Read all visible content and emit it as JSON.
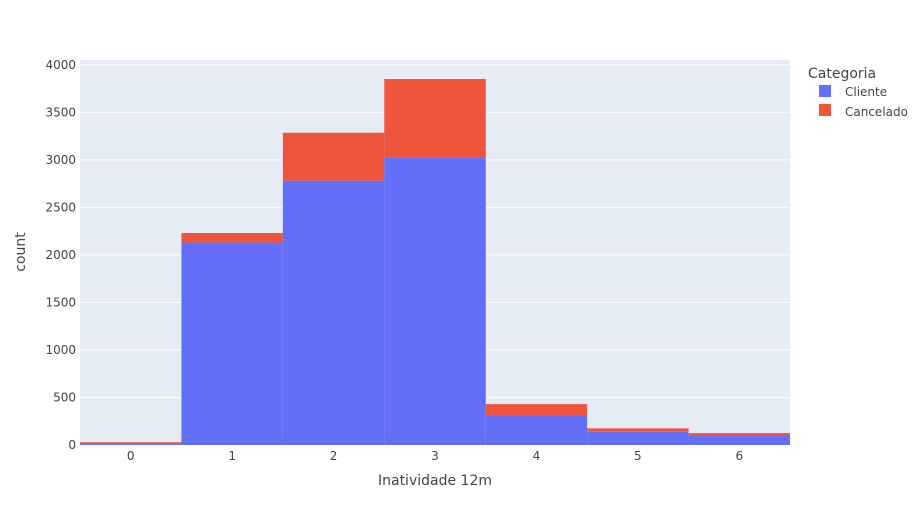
{
  "chart_data": {
    "type": "bar",
    "barmode": "stack",
    "categories": [
      "0",
      "1",
      "2",
      "3",
      "4",
      "5",
      "6"
    ],
    "series": [
      {
        "name": "Cliente",
        "values": [
          15,
          2130,
          2780,
          3020,
          305,
          145,
          100
        ]
      },
      {
        "name": "Cancelado",
        "values": [
          15,
          100,
          505,
          830,
          125,
          30,
          25
        ]
      }
    ],
    "xlabel": "Inatividade 12m",
    "ylabel": "count",
    "ylim": [
      0,
      4050
    ],
    "yticks": [
      "0",
      "500",
      "1000",
      "1500",
      "2000",
      "2500",
      "3000",
      "3500",
      "4000"
    ],
    "grid": true,
    "legend": {
      "title": "Categoria",
      "position": "right"
    },
    "colors": {
      "Cliente": "#636efa",
      "Cancelado": "#ef553b",
      "plot_bg": "#e5ecf6",
      "grid": "#ffffff"
    }
  }
}
